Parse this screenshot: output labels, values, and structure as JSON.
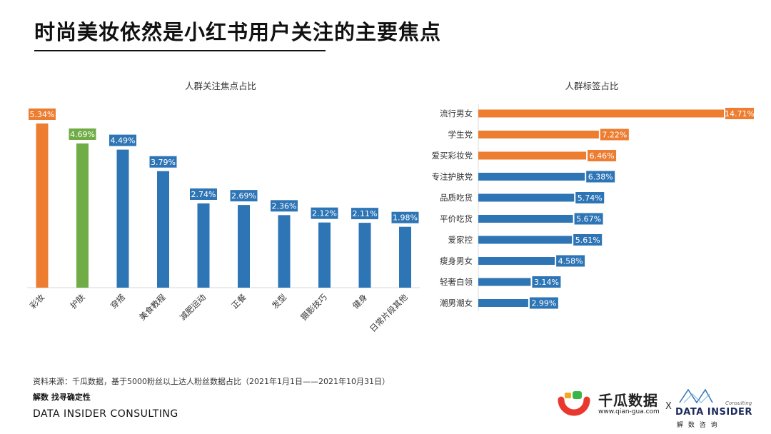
{
  "page": {
    "title": "时尚美妆依然是小红书用户关注的主要焦点",
    "source": "资料来源：千瓜数据，基于5000粉丝以上达人粉丝数据占比（2021年1月1日——2021年10月31日）",
    "slogan": "解数 找寻确定性",
    "company": "DATA INSIDER CONSULTING"
  },
  "logos": {
    "qiangua_name": "千瓜数据",
    "qiangua_url": "www.qian-gua.com",
    "separator": "X",
    "datainsider_name": "DATA INSIDER",
    "datainsider_sub": "解 数 咨 询",
    "datainsider_consulting": "Consulting"
  },
  "colors": {
    "orange": "#ED7D31",
    "green": "#70AD47",
    "blue": "#2E75B6"
  },
  "chart_data": [
    {
      "type": "bar",
      "title": "人群关注焦点占比",
      "categories": [
        "彩妆",
        "护肤",
        "穿搭",
        "美食教程",
        "减肥运动",
        "正餐",
        "发型",
        "摄影技巧",
        "健身",
        "日常片段其他"
      ],
      "values": [
        5.34,
        4.69,
        4.49,
        3.79,
        2.74,
        2.69,
        2.36,
        2.12,
        2.11,
        1.98
      ],
      "labels": [
        "5.34%",
        "4.69%",
        "4.49%",
        "3.79%",
        "2.74%",
        "2.69%",
        "2.36%",
        "2.12%",
        "2.11%",
        "1.98%"
      ],
      "colors": [
        "#ED7D31",
        "#70AD47",
        "#2E75B6",
        "#2E75B6",
        "#2E75B6",
        "#2E75B6",
        "#2E75B6",
        "#2E75B6",
        "#2E75B6",
        "#2E75B6"
      ],
      "unit": "%",
      "ylim": [
        0,
        5.34
      ]
    },
    {
      "type": "bar",
      "orientation": "horizontal",
      "title": "人群标签占比",
      "categories": [
        "流行男女",
        "学生党",
        "爱买彩妆党",
        "专注护肤党",
        "品质吃货",
        "平价吃货",
        "爱家控",
        "瘦身男女",
        "轻奢白领",
        "潮男潮女"
      ],
      "values": [
        14.71,
        7.22,
        6.46,
        6.38,
        5.74,
        5.67,
        5.61,
        4.58,
        3.14,
        2.99
      ],
      "labels": [
        "14.71%",
        "7.22%",
        "6.46%",
        "6.38%",
        "5.74%",
        "5.67%",
        "5.61%",
        "4.58%",
        "3.14%",
        "2.99%"
      ],
      "colors": [
        "#ED7D31",
        "#ED7D31",
        "#ED7D31",
        "#2E75B6",
        "#2E75B6",
        "#2E75B6",
        "#2E75B6",
        "#2E75B6",
        "#2E75B6",
        "#2E75B6"
      ],
      "unit": "%",
      "xlim": [
        0,
        14.71
      ]
    }
  ]
}
